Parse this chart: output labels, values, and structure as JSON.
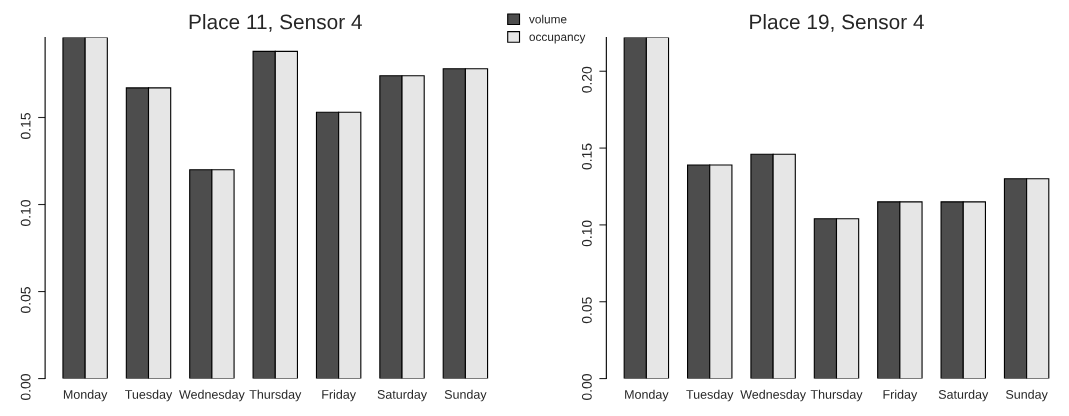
{
  "chart_data": [
    {
      "type": "bar",
      "title": "Place 11, Sensor 4",
      "categories": [
        "Monday",
        "Tuesday",
        "Wednesday",
        "Thursday",
        "Friday",
        "Saturday",
        "Sunday"
      ],
      "series": [
        {
          "name": "volume",
          "color": "#4d4d4d",
          "values": [
            0.196,
            0.167,
            0.12,
            0.188,
            0.153,
            0.174,
            0.178
          ]
        },
        {
          "name": "occupancy",
          "color": "#e6e6e6",
          "values": [
            0.196,
            0.167,
            0.12,
            0.188,
            0.153,
            0.174,
            0.178
          ]
        }
      ],
      "ylim": [
        0,
        0.196
      ],
      "yticks": [
        {
          "value": 0,
          "label": "0.00"
        },
        {
          "value": 0.05,
          "label": "0.05"
        },
        {
          "value": 0.1,
          "label": "0.10"
        },
        {
          "value": 0.15,
          "label": "0.15"
        }
      ],
      "grid": false,
      "legend": "top right"
    },
    {
      "type": "bar",
      "title": "Place 19, Sensor 4",
      "categories": [
        "Monday",
        "Tuesday",
        "Wednesday",
        "Thursday",
        "Friday",
        "Saturday",
        "Sunday"
      ],
      "series": [
        {
          "color": "#4d4d4d",
          "values": [
            0.222,
            0.139,
            0.146,
            0.104,
            0.115,
            0.115,
            0.13
          ]
        },
        {
          "color": "#e6e6e6",
          "values": [
            0.222,
            0.139,
            0.146,
            0.104,
            0.115,
            0.115,
            0.13
          ]
        }
      ],
      "ylim": [
        0,
        0.222
      ],
      "yticks": [
        {
          "value": 0,
          "label": "0.00"
        },
        {
          "value": 0.05,
          "label": "0.05"
        },
        {
          "value": 0.1,
          "label": "0.10"
        },
        {
          "value": 0.15,
          "label": "0.15"
        },
        {
          "value": 0.2,
          "label": "0.20"
        }
      ],
      "grid": false
    }
  ]
}
